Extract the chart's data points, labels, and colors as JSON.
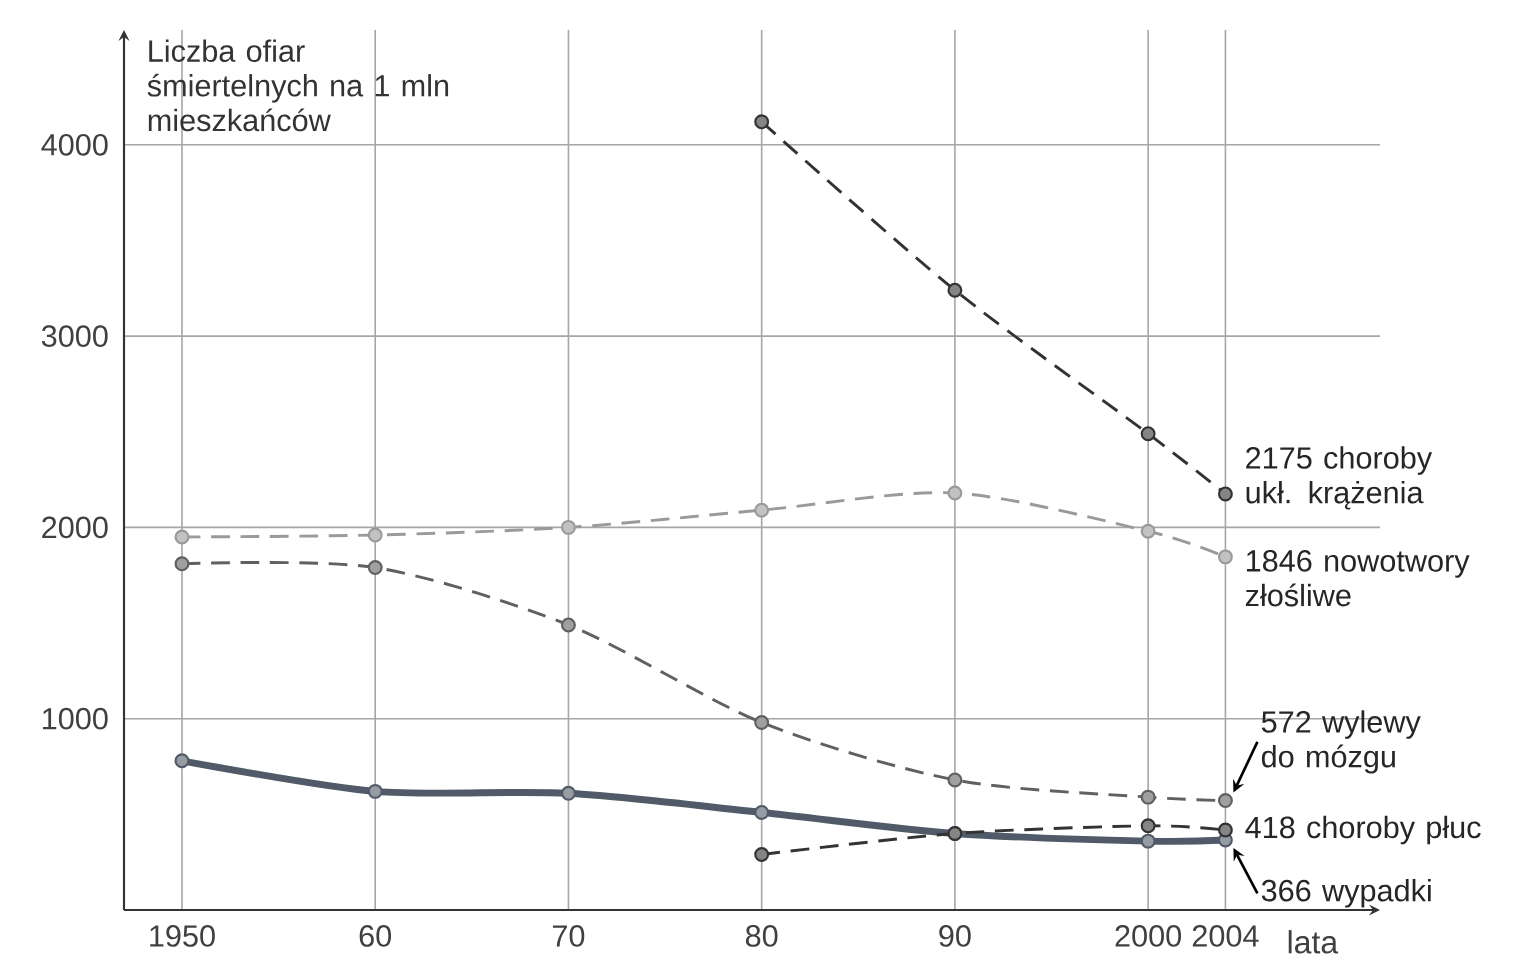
{
  "chart_data": {
    "type": "line",
    "ylabel": "Liczba ofiar śmiertelnych na 1 mln mieszkańców",
    "xlabel": "lata",
    "xlim": [
      1947,
      2012
    ],
    "ylim": [
      0,
      4600
    ],
    "xticks": [
      1950,
      {
        "value": 1960,
        "label": "60"
      },
      {
        "value": 1970,
        "label": "70"
      },
      {
        "value": 1980,
        "label": "80"
      },
      {
        "value": 1990,
        "label": "90"
      },
      2000,
      2004
    ],
    "yticks": [
      1000,
      2000,
      3000,
      4000
    ],
    "grid": true,
    "marker": "circle",
    "series": [
      {
        "name": "choroby ukł. krążenia",
        "color": "#333333",
        "line_style": "dashed",
        "x": [
          1980,
          1990,
          2000,
          2004
        ],
        "values": [
          4120,
          3240,
          2490,
          2175
        ],
        "value_labels": [
          null,
          null,
          null,
          "2175"
        ]
      },
      {
        "name": "nowotwory złośliwe",
        "color": "#9a9a9a",
        "line_style": "dashed",
        "x": [
          1950,
          1960,
          1970,
          1980,
          1990,
          2000,
          2004
        ],
        "values": [
          1950,
          1960,
          2000,
          2090,
          2180,
          1980,
          1846
        ],
        "value_labels": [
          null,
          null,
          null,
          null,
          null,
          null,
          "1846"
        ]
      },
      {
        "name": "wylewy do mózgu",
        "color": "#606060",
        "line_style": "dashed",
        "x": [
          1950,
          1960,
          1970,
          1980,
          1990,
          2000,
          2004
        ],
        "values": [
          1810,
          1790,
          1490,
          980,
          680,
          590,
          572
        ],
        "value_labels": [
          null,
          null,
          null,
          null,
          null,
          null,
          "572"
        ]
      },
      {
        "name": "wypadki",
        "color": "#505a68",
        "line_style": "solid",
        "x": [
          1950,
          1960,
          1970,
          1980,
          1990,
          2000,
          2004
        ],
        "values": [
          780,
          620,
          610,
          510,
          400,
          360,
          366
        ],
        "value_labels": [
          null,
          null,
          null,
          null,
          null,
          null,
          "366"
        ]
      },
      {
        "name": "choroby płuc",
        "color": "#333333",
        "line_style": "dashed",
        "x": [
          1980,
          1990,
          2000,
          2004
        ],
        "values": [
          290,
          400,
          440,
          418
        ],
        "value_labels": [
          null,
          null,
          null,
          "418"
        ]
      }
    ]
  }
}
